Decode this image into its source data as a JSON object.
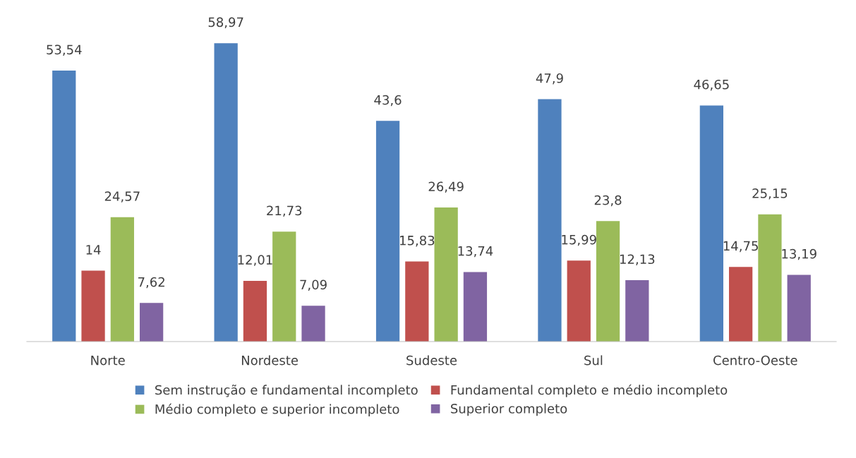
{
  "chart_data": {
    "type": "bar",
    "categories": [
      "Norte",
      "Nordeste",
      "Sudeste",
      "Sul",
      "Centro-Oeste"
    ],
    "series": [
      {
        "name": "Sem instrução e fundamental incompleto",
        "color": "#4f81bd",
        "values": [
          53.54,
          58.97,
          43.6,
          47.9,
          46.65
        ],
        "value_labels": [
          "53,54",
          "58,97",
          "43,6",
          "47,9",
          "46,65"
        ]
      },
      {
        "name": "Fundamental completo e médio incompleto",
        "color": "#c0504d",
        "values": [
          14,
          12.01,
          15.83,
          15.99,
          14.75
        ],
        "value_labels": [
          "14",
          "12,01",
          "15,83",
          "15,99",
          "14,75"
        ]
      },
      {
        "name": "Médio completo e superior incompleto",
        "color": "#9bbb59",
        "values": [
          24.57,
          21.73,
          26.49,
          23.8,
          25.15
        ],
        "value_labels": [
          "24,57",
          "21,73",
          "26,49",
          "23,8",
          "25,15"
        ]
      },
      {
        "name": "Superior completo",
        "color": "#8064a2",
        "values": [
          7.62,
          7.09,
          13.74,
          12.13,
          13.19
        ],
        "value_labels": [
          "7,62",
          "7,09",
          "13,74",
          "12,13",
          "13,19"
        ]
      }
    ],
    "grid": false,
    "legend": "bottom"
  }
}
